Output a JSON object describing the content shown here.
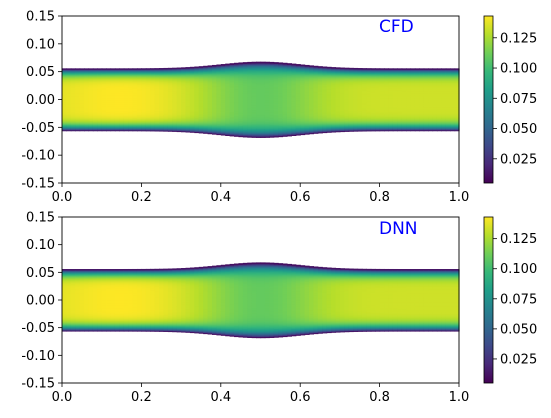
{
  "chart_data": [
    {
      "type": "heatmap",
      "panel_label": "CFD",
      "label_color": "#0000ff",
      "xlim": [
        0.0,
        1.0
      ],
      "ylim": [
        -0.15,
        0.15
      ],
      "xticks": [
        "0.0",
        "0.2",
        "0.4",
        "0.6",
        "0.8",
        "1.0"
      ],
      "yticks": [
        "0.15",
        "0.10",
        "0.05",
        "0.00",
        "-0.05",
        "-0.10",
        "-0.15"
      ],
      "colormap": "viridis",
      "color_range": [
        0.005,
        0.143
      ],
      "colorbar_ticks": [
        "0.125",
        "0.100",
        "0.075",
        "0.050",
        "0.025"
      ],
      "channel": {
        "half_width": 0.056,
        "bump_height": 0.012,
        "bump_center": 0.5,
        "bump_sigma": 0.1
      },
      "field": {
        "max_value": 0.143,
        "max_at_x": 0.15
      }
    },
    {
      "type": "heatmap",
      "panel_label": "DNN",
      "label_color": "#0000ff",
      "xlim": [
        0.0,
        1.0
      ],
      "ylim": [
        -0.15,
        0.15
      ],
      "xticks": [
        "0.0",
        "0.2",
        "0.4",
        "0.6",
        "0.8",
        "1.0"
      ],
      "yticks": [
        "0.15",
        "0.10",
        "0.05",
        "0.00",
        "-0.05",
        "-0.10",
        "-0.15"
      ],
      "colormap": "viridis",
      "color_range": [
        0.005,
        0.143
      ],
      "colorbar_ticks": [
        "0.125",
        "0.100",
        "0.075",
        "0.050",
        "0.025"
      ],
      "channel": {
        "half_width": 0.056,
        "bump_height": 0.012,
        "bump_center": 0.5,
        "bump_sigma": 0.1
      },
      "field": {
        "max_value": 0.143,
        "max_at_x": 0.15
      }
    }
  ]
}
